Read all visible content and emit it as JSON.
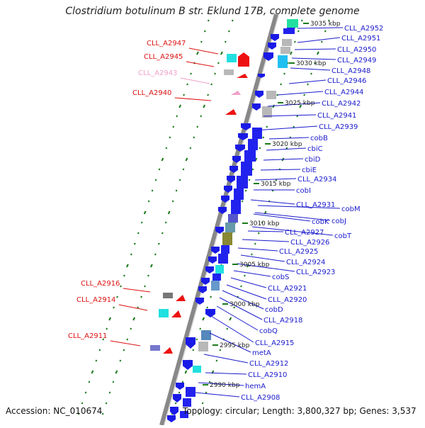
{
  "title": "Clostridium botulinum B str. Eklund 17B, complete genome",
  "footer": {
    "accession": "Accession: NC_010674",
    "topology": "Topology: circular; Length: 3,800,327 bp; Genes: 3,537"
  },
  "colors": {
    "gene_blue": "#1a1ae6",
    "label_blue": "#1a1acc",
    "label_red": "#d11",
    "label_pink": "#f0a0c8",
    "hypothetical_red": "#ee1111",
    "tick_green": "#1a7a1a",
    "backbone": "#888888",
    "cyan_box": "#22e0e0",
    "grey_box": "#b8b8b8"
  },
  "kbp_marks": [
    "3035 kbp",
    "3030 kbp",
    "3025 kbp",
    "3020 kbp",
    "3015 kbp",
    "3010 kbp",
    "3005 kbp",
    "3000 kbp",
    "2995 kbp",
    "2990 kbp"
  ],
  "right_labels": [
    "CLL_A2952",
    "CLL_A2951",
    "CLL_A2950",
    "CLL_A2949",
    "CLL_A2948",
    "CLL_A2946",
    "CLL_A2944",
    "CLL_A2942",
    "CLL_A2941",
    "CLL_A2939",
    "cobB",
    "cbiC",
    "cbiD",
    "cbiE",
    "CLL_A2934",
    "cobI",
    "CLL_A2931",
    "cobM",
    "cobK",
    "cobJ",
    "CLL_A2927",
    "cobT",
    "CLL_A2926",
    "CLL_A2925",
    "CLL_A2924",
    "CLL_A2923",
    "cobS",
    "CLL_A2921",
    "CLL_A2920",
    "cobD",
    "CLL_A2918",
    "cobQ",
    "CLL_A2915",
    "metA",
    "CLL_A2912",
    "CLL_A2910",
    "hemA",
    "CLL_A2908"
  ],
  "left_labels": [
    "CLL_A2947",
    "CLL_A2945",
    "CLL_A2943",
    "CLL_A2940",
    "CLL_A2916",
    "CLL_A2914",
    "CLL_A2911"
  ]
}
